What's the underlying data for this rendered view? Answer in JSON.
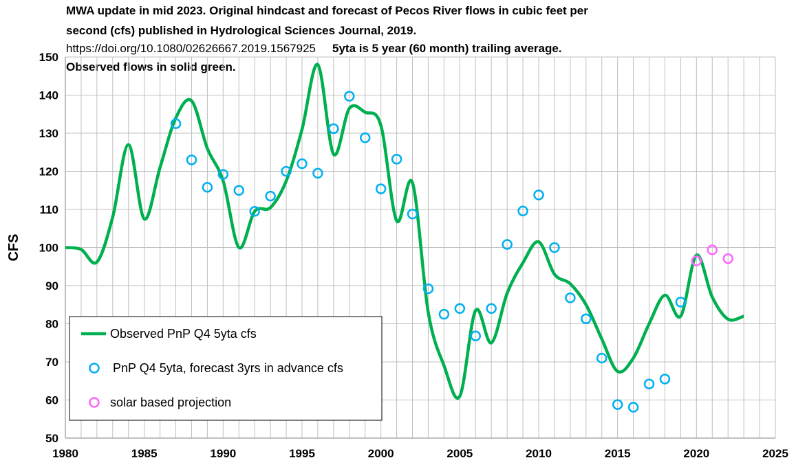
{
  "chart_data": {
    "type": "line",
    "title_lines": [
      "MWA update in mid 2023.    Original hindcast and forecast of Pecos River flows in cubic feet per",
      "second (cfs) published in  Hydrological Sciences Journal, 2019."
    ],
    "doi": "https://doi.org/10.1080/02626667.2019.1567925",
    "note": "5yta is 5 year (60 month) trailing average.",
    "note2": "Observed flows in solid green.",
    "ylabel": "CFS",
    "xlabel": "",
    "xlim": [
      1980,
      2025
    ],
    "ylim": [
      50,
      150
    ],
    "x_ticks": [
      "1980",
      "1985",
      "1990",
      "1995",
      "2000",
      "2005",
      "2010",
      "2015",
      "2020",
      "2025"
    ],
    "y_ticks": [
      "50",
      "60",
      "70",
      "80",
      "90",
      "100",
      "110",
      "120",
      "130",
      "140",
      "150"
    ],
    "grid": true,
    "legend": {
      "position": "bottom-left",
      "entries": [
        "Observed PnP Q4 5yta cfs",
        "PnP Q4 5yta, forecast 3yrs in advance cfs",
        "solar based projection"
      ]
    },
    "colors": {
      "observed": "#00b050",
      "forecast": "#00b0f0",
      "solar": "#ff66ff"
    },
    "series": [
      {
        "name": "Observed PnP Q4 5yta cfs",
        "style": "line",
        "x": [
          1980,
          1981,
          1982,
          1983,
          1984,
          1985,
          1986,
          1987,
          1988,
          1989,
          1990,
          1991,
          1992,
          1993,
          1994,
          1995,
          1996,
          1997,
          1998,
          1999,
          2000,
          2001,
          2002,
          2003,
          2004,
          2005,
          2006,
          2007,
          2008,
          2009,
          2010,
          2011,
          2012,
          2013,
          2014,
          2015,
          2016,
          2017,
          2018,
          2019,
          2020,
          2021,
          2022,
          2023
        ],
        "values": [
          100,
          99.5,
          96.2,
          108,
          127,
          107.5,
          121,
          134,
          138.5,
          126,
          117.5,
          100,
          109.5,
          110.5,
          117.5,
          131,
          148,
          124.5,
          136.5,
          135.5,
          132,
          107,
          117,
          83,
          69,
          61,
          83.5,
          75,
          88,
          96,
          101.5,
          93,
          90.5,
          85,
          76,
          67.5,
          71,
          80,
          87.5,
          82,
          98,
          87,
          81.2,
          82
        ]
      },
      {
        "name": "PnP Q4 5yta, forecast 3yrs in advance cfs",
        "style": "markers",
        "x": [
          1987,
          1988,
          1989,
          1990,
          1991,
          1992,
          1993,
          1994,
          1995,
          1996,
          1997,
          1998,
          1999,
          2000,
          2001,
          2002,
          2003,
          2004,
          2005,
          2006,
          2007,
          2008,
          2009,
          2010,
          2011,
          2012,
          2013,
          2014,
          2015,
          2016,
          2017,
          2018,
          2019
        ],
        "values": [
          132.5,
          123,
          115.8,
          119.2,
          115,
          109.5,
          113.5,
          120,
          122,
          119.5,
          131.2,
          139.7,
          128.8,
          115.4,
          123.2,
          108.8,
          89.2,
          82.5,
          84,
          76.8,
          84,
          100.8,
          109.6,
          113.8,
          100,
          86.8,
          81.3,
          71,
          58.8,
          58.1,
          64.2,
          65.5,
          85.7
        ]
      },
      {
        "name": "solar based projection",
        "style": "markers",
        "x": [
          2020,
          2021,
          2022
        ],
        "values": [
          96.5,
          99.4,
          97.1
        ]
      }
    ]
  }
}
